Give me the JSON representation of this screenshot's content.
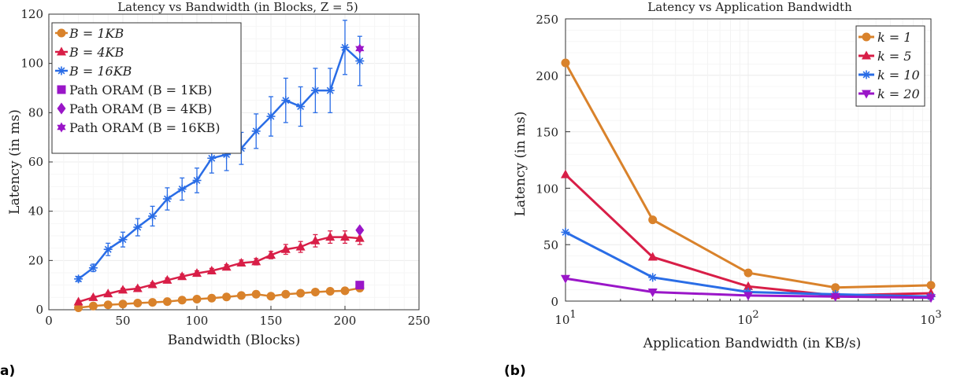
{
  "panel_labels": [
    "a)",
    "(b)"
  ],
  "chart_data": [
    {
      "type": "line",
      "title": "Latency vs Bandwidth (in Blocks, Z = 5)",
      "xlabel": "Bandwidth (Blocks)",
      "ylabel": "Latency (in ms)",
      "xlim": [
        0,
        250
      ],
      "ylim": [
        0,
        120
      ],
      "xticks": [
        0,
        50,
        100,
        150,
        200,
        250
      ],
      "yticks": [
        0,
        20,
        40,
        60,
        80,
        100,
        120
      ],
      "grid": true,
      "legend_position": "top-left",
      "x": [
        20,
        30,
        40,
        50,
        60,
        70,
        80,
        90,
        100,
        110,
        120,
        130,
        140,
        150,
        160,
        170,
        180,
        190,
        200,
        210
      ],
      "series": [
        {
          "name": "B = 1KB",
          "color": "#d9822b",
          "marker": "circle",
          "values": [
            0.8,
            1.5,
            2.0,
            2.3,
            2.7,
            3.0,
            3.3,
            3.9,
            4.3,
            4.7,
            5.2,
            5.8,
            6.3,
            5.5,
            6.3,
            6.7,
            7.2,
            7.5,
            7.7,
            8.8
          ],
          "errors": [
            0.3,
            0.3,
            0.3,
            0.3,
            0.3,
            0.3,
            0.3,
            0.3,
            0.3,
            0.3,
            0.3,
            0.3,
            0.3,
            0.3,
            0.3,
            0.3,
            0.3,
            0.3,
            0.3,
            0.5
          ]
        },
        {
          "name": "B = 4KB",
          "color": "#d81e47",
          "marker": "triangle",
          "values": [
            3.2,
            5.0,
            6.5,
            8.0,
            8.6,
            10.2,
            12.0,
            13.5,
            14.8,
            15.8,
            17.3,
            19.0,
            19.5,
            22.2,
            24.5,
            25.5,
            28.0,
            29.5,
            29.5,
            29.0
          ],
          "errors": [
            0.5,
            0.5,
            0.5,
            0.7,
            0.7,
            0.8,
            0.9,
            1.0,
            1.0,
            1.0,
            1.0,
            1.2,
            1.3,
            1.5,
            2.0,
            2.2,
            2.5,
            2.5,
            2.5,
            2.5
          ]
        },
        {
          "name": "B = 16KB",
          "color": "#2a6de6",
          "marker": "asterisk",
          "values": [
            12.5,
            17.0,
            24.5,
            28.5,
            33.5,
            38.0,
            45.0,
            49.0,
            52.5,
            61.5,
            63.0,
            65.5,
            72.5,
            78.5,
            85.0,
            82.5,
            89.0,
            89.0,
            106.5,
            101.0
          ],
          "errors": [
            1.0,
            1.5,
            2.5,
            3.0,
            3.5,
            4.0,
            4.5,
            4.5,
            5.0,
            6.0,
            6.5,
            6.5,
            7.0,
            8.0,
            9.0,
            8.0,
            9.0,
            9.0,
            11.0,
            10.0
          ]
        }
      ],
      "points": [
        {
          "name": "Path ORAM (B = 1KB)",
          "color": "#9a16c8",
          "marker": "square",
          "x": 210,
          "y": 10.0
        },
        {
          "name": "Path ORAM (B = 4KB)",
          "color": "#9a16c8",
          "marker": "diamond",
          "x": 210,
          "y": 32.3
        },
        {
          "name": "Path ORAM (B = 16KB)",
          "color": "#9a16c8",
          "marker": "hexagram",
          "x": 210,
          "y": 106.0
        }
      ]
    },
    {
      "type": "line",
      "title": "Latency vs Application Bandwidth",
      "xlabel": "Application Bandwidth (in KB/s)",
      "ylabel": "Latency (in ms)",
      "xscale": "log",
      "xlim": [
        10,
        1000
      ],
      "ylim": [
        0,
        250
      ],
      "yticks": [
        0,
        50,
        100,
        150,
        200,
        250
      ],
      "xtick_bases": [
        "10",
        "10",
        "10"
      ],
      "xtick_exponents": [
        "1",
        "2",
        "3"
      ],
      "grid": true,
      "legend_position": "top-right",
      "x": [
        10,
        30,
        100,
        300,
        1000
      ],
      "series": [
        {
          "name": "k = 1",
          "color": "#d9822b",
          "marker": "circle",
          "values": [
            211,
            72,
            25,
            12,
            14
          ]
        },
        {
          "name": "k = 5",
          "color": "#d81e47",
          "marker": "triangle",
          "values": [
            112,
            39,
            13,
            5,
            7
          ]
        },
        {
          "name": "k = 10",
          "color": "#2a6de6",
          "marker": "asterisk",
          "values": [
            61,
            21,
            8,
            6,
            4
          ]
        },
        {
          "name": "k = 20",
          "color": "#9a16c8",
          "marker": "triangle-down",
          "values": [
            20,
            8,
            5,
            4,
            3
          ]
        }
      ]
    }
  ]
}
